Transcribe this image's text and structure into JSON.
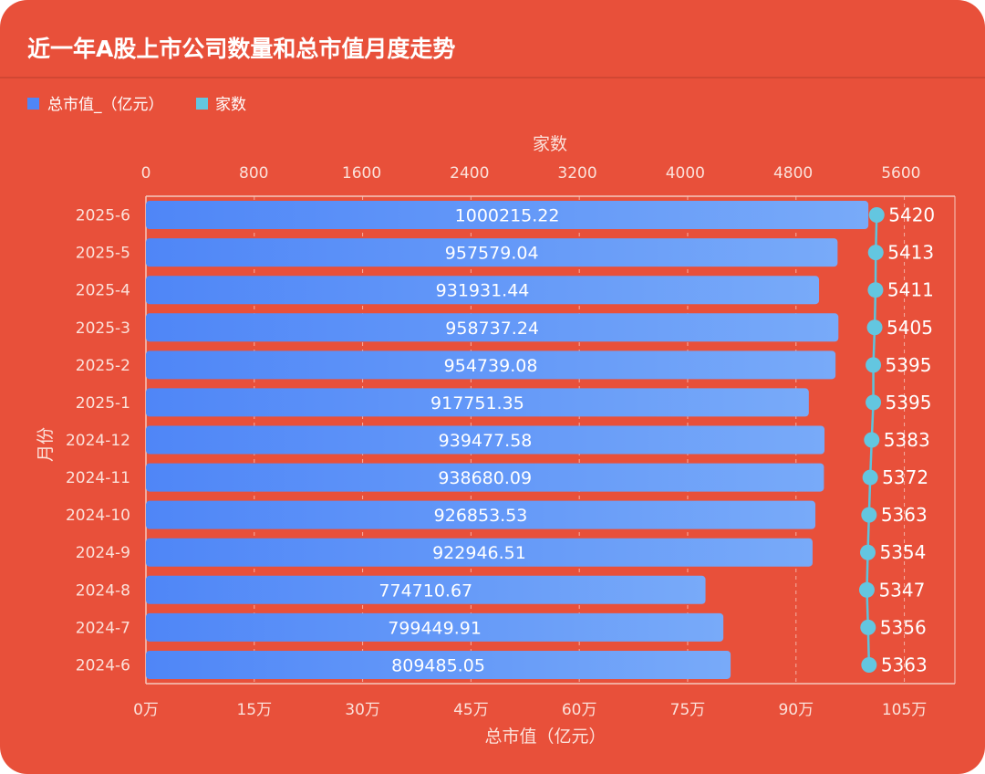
{
  "colors": {
    "background": "#e8503a",
    "bar_start": "#4f86f7",
    "bar_end": "#78aaf9",
    "line": "#5dc3dc",
    "point": "#63c6e0",
    "text": "#ffffff"
  },
  "chart_data": {
    "type": "bar",
    "title": "近一年A股上市公司数量和总市值月度走势",
    "orientation": "horizontal",
    "categories": [
      "2025-6",
      "2025-5",
      "2025-4",
      "2025-3",
      "2025-2",
      "2025-1",
      "2024-12",
      "2024-11",
      "2024-10",
      "2024-9",
      "2024-8",
      "2024-7",
      "2024-6"
    ],
    "series": [
      {
        "name": "总市值_（亿元）",
        "type": "bar",
        "axis": "bottom",
        "values": [
          1000215.22,
          957579.04,
          931931.44,
          958737.24,
          954739.08,
          917751.35,
          939477.58,
          938680.09,
          926853.53,
          922946.51,
          774710.67,
          799449.91,
          809485.05
        ]
      },
      {
        "name": "家数",
        "type": "line",
        "axis": "top",
        "values": [
          5420,
          5413,
          5411,
          5405,
          5395,
          5395,
          5383,
          5372,
          5363,
          5354,
          5347,
          5356,
          5363
        ]
      }
    ],
    "bottom_axis": {
      "label": "总市值（亿元）",
      "ticks": [
        "0万",
        "15万",
        "30万",
        "45万",
        "60万",
        "75万",
        "90万",
        "105万"
      ],
      "tick_values": [
        0,
        150000,
        300000,
        450000,
        600000,
        750000,
        900000,
        1050000
      ],
      "range": [
        0,
        1120000
      ]
    },
    "top_axis": {
      "label": "家数",
      "ticks": [
        "0",
        "800",
        "1600",
        "2400",
        "3200",
        "4000",
        "4800",
        "5600"
      ],
      "range": [
        0,
        6000
      ]
    },
    "y_axis": {
      "label": "月份"
    },
    "legend": {
      "position": "top-left"
    },
    "grid": "dashed vertical lines"
  }
}
